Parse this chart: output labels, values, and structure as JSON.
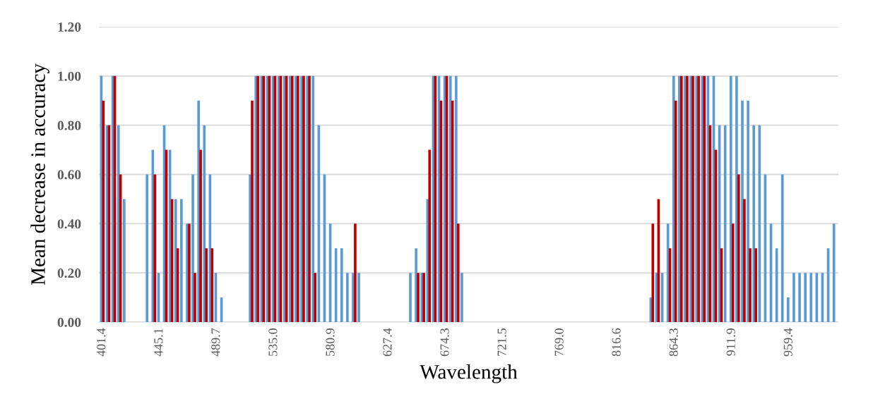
{
  "chart_data": {
    "type": "bar",
    "xlabel": "Wavelength",
    "ylabel": "Mean decrease in accuracy",
    "categories": [
      "401.4",
      null,
      null,
      null,
      null,
      null,
      null,
      null,
      null,
      null,
      "445.1",
      null,
      null,
      null,
      null,
      null,
      null,
      null,
      null,
      null,
      "489.7",
      null,
      null,
      null,
      null,
      null,
      null,
      null,
      null,
      null,
      "535.0",
      null,
      null,
      null,
      null,
      null,
      null,
      null,
      null,
      null,
      "580.9",
      null,
      null,
      null,
      null,
      null,
      null,
      null,
      null,
      null,
      "627.4",
      null,
      null,
      null,
      null,
      null,
      null,
      null,
      null,
      null,
      "674.3",
      null,
      null,
      null,
      null,
      null,
      null,
      null,
      null,
      null,
      "721.5",
      null,
      null,
      null,
      null,
      null,
      null,
      null,
      null,
      null,
      "769.0",
      null,
      null,
      null,
      null,
      null,
      null,
      null,
      null,
      null,
      "816.6",
      null,
      null,
      null,
      null,
      null,
      null,
      null,
      null,
      null,
      "864.3",
      null,
      null,
      null,
      null,
      null,
      null,
      null,
      null,
      null,
      "911.9",
      null,
      null,
      null,
      null,
      null,
      null,
      null,
      null,
      null,
      "959.4",
      null,
      null,
      null,
      null,
      null,
      null,
      null,
      null
    ],
    "series": [
      {
        "color": "#5b9bd5",
        "values": [
          1.0,
          0.8,
          1.0,
          0.8,
          0.5,
          null,
          null,
          null,
          0.6,
          0.7,
          0.2,
          0.8,
          0.7,
          0.5,
          0.5,
          0.4,
          0.6,
          0.9,
          0.8,
          0.6,
          0.2,
          0.1,
          null,
          null,
          null,
          null,
          0.6,
          1.0,
          1.0,
          1.0,
          1.0,
          1.0,
          1.0,
          1.0,
          1.0,
          1.0,
          1.0,
          1.0,
          0.8,
          0.6,
          0.4,
          0.3,
          0.3,
          0.2,
          0.2,
          0.2,
          null,
          null,
          null,
          null,
          null,
          null,
          null,
          null,
          0.2,
          0.3,
          0.2,
          0.5,
          1.0,
          1.0,
          1.0,
          1.0,
          1.0,
          0.2,
          null,
          null,
          null,
          null,
          null,
          null,
          null,
          null,
          null,
          null,
          null,
          null,
          null,
          null,
          null,
          null,
          null,
          null,
          null,
          null,
          null,
          null,
          null,
          null,
          null,
          null,
          null,
          null,
          null,
          null,
          null,
          null,
          0.1,
          0.2,
          0.2,
          0.4,
          1.0,
          1.0,
          1.0,
          1.0,
          1.0,
          1.0,
          1.0,
          1.0,
          0.8,
          0.8,
          1.0,
          1.0,
          0.9,
          0.9,
          0.8,
          0.8,
          0.6,
          0.4,
          0.3,
          0.6,
          0.1,
          0.2,
          0.2,
          0.2,
          0.2,
          0.2,
          0.2,
          0.3,
          0.4
        ]
      },
      {
        "color": "#c00000",
        "values": [
          0.9,
          0.8,
          1.0,
          0.6,
          null,
          null,
          null,
          null,
          null,
          0.6,
          null,
          0.7,
          0.5,
          0.3,
          null,
          0.4,
          0.2,
          0.7,
          0.3,
          0.3,
          null,
          null,
          null,
          null,
          null,
          null,
          0.9,
          1.0,
          1.0,
          1.0,
          1.0,
          1.0,
          1.0,
          1.0,
          1.0,
          1.0,
          1.0,
          0.2,
          null,
          null,
          null,
          null,
          null,
          null,
          0.4,
          null,
          null,
          null,
          null,
          null,
          null,
          null,
          null,
          null,
          null,
          0.2,
          0.2,
          0.7,
          1.0,
          0.9,
          1.0,
          0.9,
          0.4,
          null,
          null,
          null,
          null,
          null,
          null,
          null,
          null,
          null,
          null,
          null,
          null,
          null,
          null,
          null,
          null,
          null,
          null,
          null,
          null,
          null,
          null,
          null,
          null,
          null,
          null,
          null,
          null,
          null,
          null,
          null,
          null,
          null,
          0.4,
          0.5,
          null,
          0.3,
          0.9,
          1.0,
          1.0,
          1.0,
          1.0,
          1.0,
          0.8,
          0.7,
          0.3,
          null,
          0.4,
          0.6,
          0.5,
          0.3,
          0.3,
          null,
          null,
          null,
          null,
          null,
          null,
          null,
          null,
          null,
          null,
          null,
          null,
          null,
          null
        ]
      }
    ],
    "ylim": [
      0,
      1.2
    ],
    "yticks": [
      {
        "value": 0,
        "label": "0.00"
      },
      {
        "value": 0.2,
        "label": "0.20"
      },
      {
        "value": 0.4,
        "label": "0.40"
      },
      {
        "value": 0.6,
        "label": "0.60"
      },
      {
        "value": 0.8,
        "label": "0.80"
      },
      {
        "value": 1.0,
        "label": "1.00"
      },
      {
        "value": 1.2,
        "label": "1.20"
      }
    ],
    "grid": "y",
    "legend": false
  }
}
